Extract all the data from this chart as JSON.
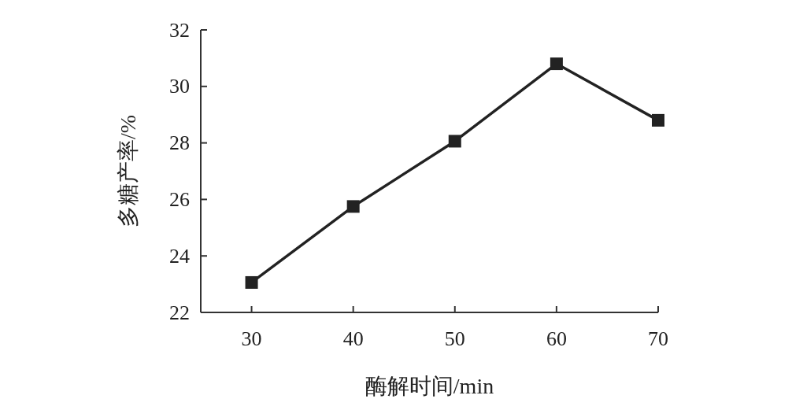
{
  "chart_data": {
    "type": "line",
    "xlabel": "酶解时间/min",
    "ylabel": "多糖产率/%",
    "x": [
      30,
      40,
      50,
      60,
      70
    ],
    "series": [
      {
        "color": "#222222",
        "values": [
          23.06,
          25.75,
          28.06,
          30.8,
          28.8
        ]
      }
    ],
    "xlim": [
      25,
      70
    ],
    "xticks": [
      30,
      40,
      50,
      60,
      70
    ],
    "ylim": [
      22,
      32
    ],
    "yticks": [
      22,
      24,
      26,
      28,
      30,
      32
    ],
    "marker": "square",
    "line_style": "solid"
  }
}
